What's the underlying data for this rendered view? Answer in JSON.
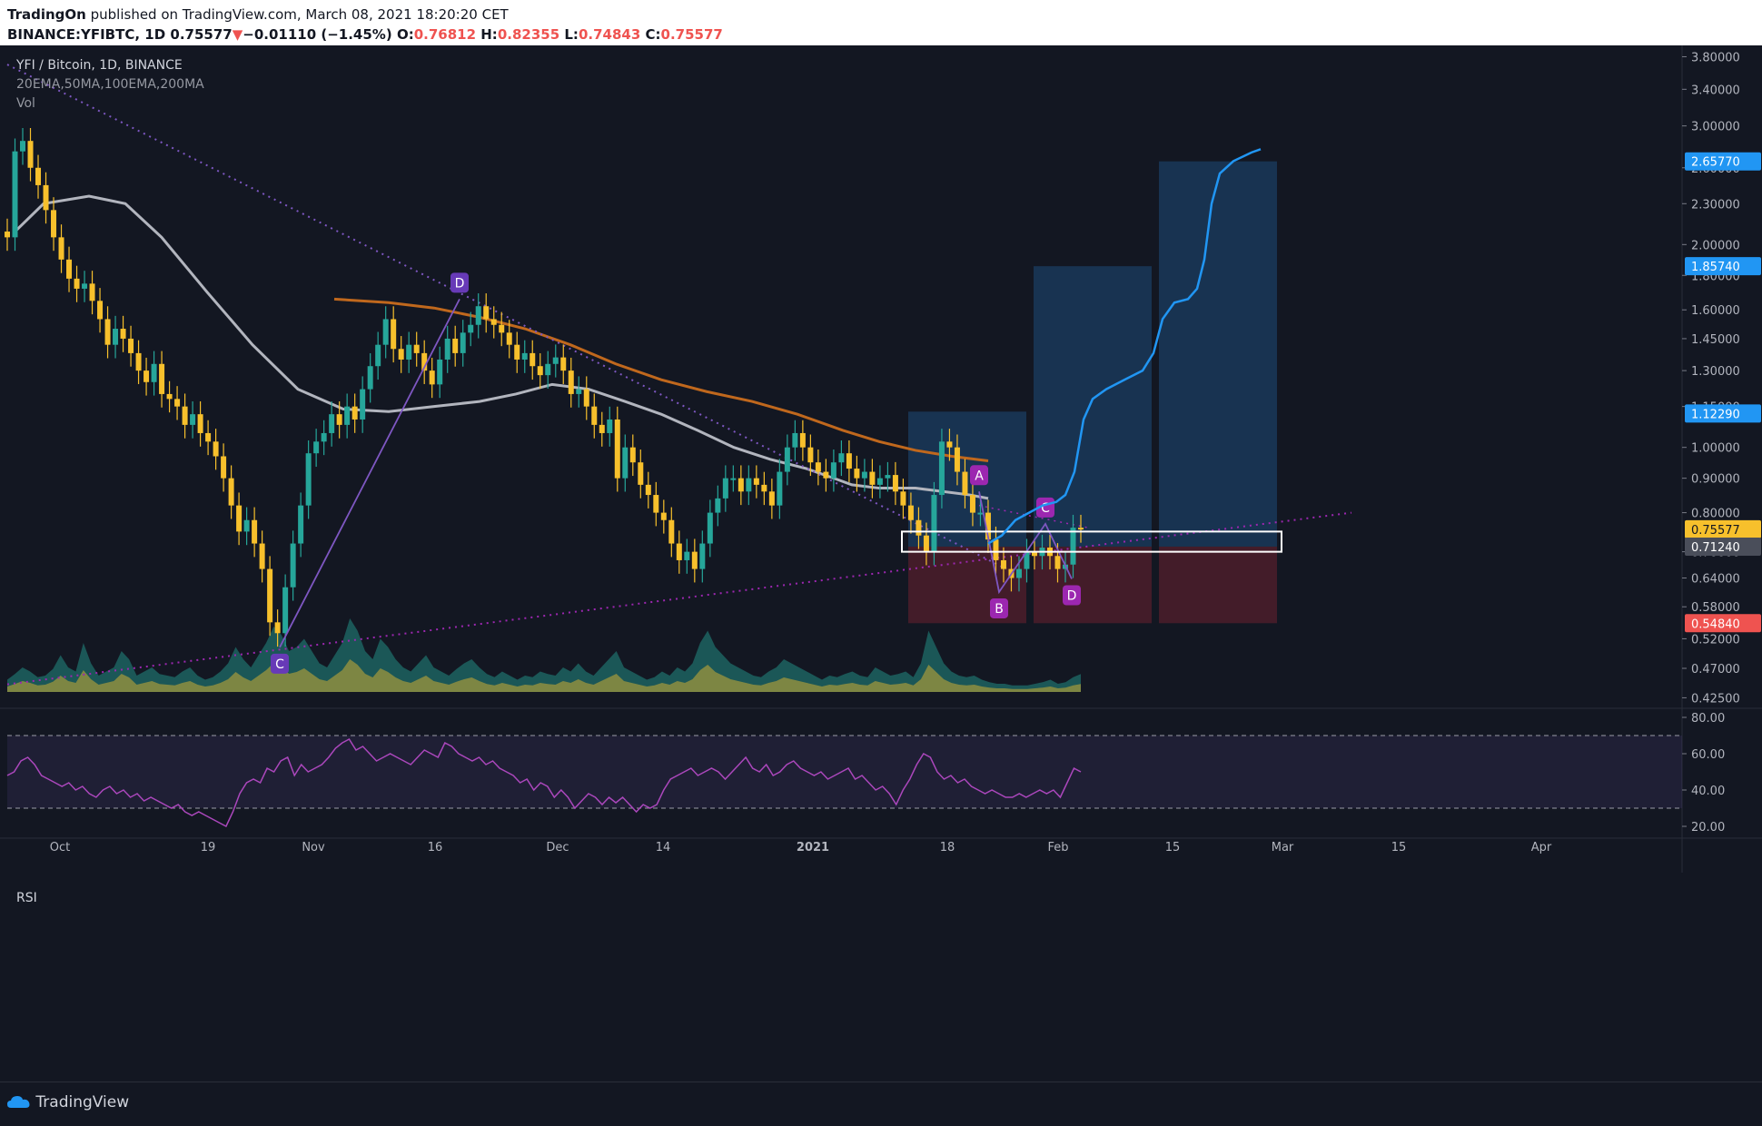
{
  "header": {
    "publisher": "TradingOn",
    "published_text": "published on TradingView.com, March 08, 2021 18:20:20 CET",
    "symbol": "BINANCE:YFIBTC, 1D",
    "last": "0.75577",
    "arrow": "▼",
    "change": "−0.01110 (−1.45%)",
    "o_label": "O:",
    "o": "0.76812",
    "h_label": "H:",
    "h": "0.82355",
    "l_label": "L:",
    "l": "0.74843",
    "c_label": "C:",
    "c": "0.75577"
  },
  "legend": {
    "title": "YFI / Bitcoin, 1D, BINANCE",
    "indicators": "20EMA,50MA,100EMA,200MA",
    "volume": "Vol",
    "rsi": "RSI"
  },
  "footer": {
    "brand": "TradingView"
  },
  "colors": {
    "background": "#131722",
    "up": "#26a69a",
    "down": "#f7c02c",
    "ma50": "#b2b5be",
    "ema100": "#c0681d",
    "pattern": "#7e57c2",
    "trend": "#9c27b0",
    "forecast": "#2196f3",
    "rsi": "#ab47bc"
  },
  "chart_data": [
    {
      "type": "candlestick",
      "title": "YFI / Bitcoin, 1D, BINANCE",
      "scale": "log",
      "ylim": [
        0.41,
        3.95
      ],
      "x_ticks": [
        "Oct",
        "19",
        "Nov",
        "16",
        "Dec",
        "14",
        "2021",
        "18",
        "Feb",
        "15",
        "Mar",
        "15",
        "Apr"
      ],
      "y_ticks": [
        "3.80000",
        "3.40000",
        "3.00000",
        "2.60000",
        "2.30000",
        "2.00000",
        "1.80000",
        "1.60000",
        "1.45000",
        "1.30000",
        "1.15000",
        "1.00000",
        "0.90000",
        "0.80000",
        "0.70000",
        "0.64000",
        "0.58000",
        "0.52000",
        "0.47000",
        "0.42500"
      ],
      "price_labels": [
        {
          "value": "2.65770",
          "price": 2.6577,
          "color": "#2196f3",
          "text_color": "#ffffff"
        },
        {
          "value": "1.85740",
          "price": 1.8574,
          "color": "#2196f3",
          "text_color": "#ffffff"
        },
        {
          "value": "1.12290",
          "price": 1.1229,
          "color": "#2196f3",
          "text_color": "#ffffff"
        },
        {
          "value": "0.75577",
          "price": 0.75577,
          "color": "#f7c02c",
          "text_color": "#131722"
        },
        {
          "value": "0.71240",
          "price": 0.7124,
          "color": "#4a4e5a",
          "text_color": "#ffffff"
        },
        {
          "value": "0.54840",
          "price": 0.5484,
          "color": "#ef5350",
          "text_color": "#ffffff"
        }
      ],
      "closes_early": [
        2.05,
        2.75,
        2.85,
        2.6,
        2.45,
        2.25,
        2.05,
        1.9,
        1.78,
        1.72,
        1.75,
        1.65,
        1.55,
        1.42,
        1.5,
        1.45,
        1.38,
        1.3,
        1.25,
        1.33,
        1.2,
        1.18,
        1.15,
        1.08,
        1.12,
        1.05,
        1.02,
        0.97,
        0.9,
        0.82,
        0.75,
        0.78,
        0.72,
        0.66,
        0.55,
        0.53,
        0.62,
        0.72,
        0.82,
        0.98,
        1.02,
        1.05,
        1.12,
        1.08,
        1.15,
        1.1,
        1.22,
        1.32,
        1.42,
        1.55,
        1.4,
        1.35,
        1.42,
        1.38,
        1.3,
        1.24,
        1.35,
        1.45,
        1.38,
        1.48,
        1.52,
        1.62,
        1.55,
        1.52,
        1.48,
        1.42,
        1.35,
        1.38,
        1.32,
        1.28,
        1.33,
        1.36,
        1.3,
        1.2,
        1.22,
        1.15,
        1.08,
        1.05,
        1.1,
        0.9,
        1.0,
        0.95,
        0.88,
        0.85,
        0.8,
        0.78,
        0.72,
        0.68,
        0.7,
        0.66,
        0.72,
        0.8,
        0.84,
        0.9,
        0.9,
        0.86,
        0.9,
        0.88,
        0.86,
        0.82,
        0.92,
        1.0,
        1.05,
        1.0,
        0.95,
        0.92,
        0.9,
        0.95,
        0.98,
        0.93,
        0.9,
        0.92,
        0.88,
        0.9,
        0.91,
        0.86,
        0.82,
        0.78,
        0.74,
        0.7,
        0.85,
        1.02,
        1.0,
        0.92,
        0.85,
        0.8
      ],
      "closes_late": [
        0.8,
        0.73,
        0.68,
        0.66,
        0.64,
        0.66,
        0.7,
        0.69,
        0.71,
        0.69,
        0.66,
        0.67,
        0.76,
        0.756
      ],
      "volume_scale": [
        0.15,
        0.22,
        0.3,
        0.25,
        0.18,
        0.2,
        0.28,
        0.45,
        0.3,
        0.25,
        0.6,
        0.35,
        0.2,
        0.25,
        0.3,
        0.5,
        0.4,
        0.2,
        0.25,
        0.3,
        0.22,
        0.2,
        0.18,
        0.25,
        0.3,
        0.2,
        0.15,
        0.18,
        0.25,
        0.35,
        0.55,
        0.4,
        0.3,
        0.45,
        0.6,
        0.8,
        0.7,
        0.5,
        0.55,
        0.65,
        0.5,
        0.35,
        0.3,
        0.45,
        0.6,
        0.9,
        0.75,
        0.5,
        0.4,
        0.65,
        0.55,
        0.4,
        0.3,
        0.25,
        0.35,
        0.45,
        0.3,
        0.25,
        0.2,
        0.28,
        0.35,
        0.4,
        0.3,
        0.22,
        0.18,
        0.25,
        0.2,
        0.15,
        0.2,
        0.18,
        0.25,
        0.22,
        0.2,
        0.3,
        0.25,
        0.35,
        0.25,
        0.2,
        0.3,
        0.4,
        0.5,
        0.3,
        0.25,
        0.2,
        0.15,
        0.18,
        0.25,
        0.2,
        0.3,
        0.25,
        0.35,
        0.6,
        0.75,
        0.55,
        0.45,
        0.35,
        0.3,
        0.25,
        0.2,
        0.18,
        0.25,
        0.3,
        0.4,
        0.35,
        0.3,
        0.25,
        0.2,
        0.15,
        0.2,
        0.18,
        0.22,
        0.25,
        0.2,
        0.18,
        0.3,
        0.25,
        0.2,
        0.22,
        0.25,
        0.18,
        0.35,
        0.75,
        0.55,
        0.35,
        0.25,
        0.2,
        0.18,
        0.2,
        0.15,
        0.12,
        0.1,
        0.1,
        0.08,
        0.08,
        0.08,
        0.1,
        0.12,
        0.15,
        0.1,
        0.12,
        0.18,
        0.22
      ],
      "ma50": [
        [
          10,
          2.1
        ],
        [
          40,
          2.3
        ],
        [
          90,
          2.36
        ],
        [
          130,
          2.3
        ],
        [
          170,
          2.05
        ],
        [
          220,
          1.7
        ],
        [
          270,
          1.42
        ],
        [
          320,
          1.22
        ],
        [
          370,
          1.14
        ],
        [
          420,
          1.13
        ],
        [
          470,
          1.15
        ],
        [
          520,
          1.17
        ],
        [
          560,
          1.2
        ],
        [
          600,
          1.24
        ],
        [
          640,
          1.22
        ],
        [
          680,
          1.17
        ],
        [
          720,
          1.12
        ],
        [
          760,
          1.06
        ],
        [
          800,
          1.0
        ],
        [
          840,
          0.96
        ],
        [
          880,
          0.93
        ],
        [
          910,
          0.9
        ],
        [
          930,
          0.88
        ],
        [
          960,
          0.87
        ],
        [
          1000,
          0.87
        ],
        [
          1030,
          0.86
        ],
        [
          1060,
          0.85
        ],
        [
          1080,
          0.84
        ]
      ],
      "ema100": [
        [
          360,
          1.66
        ],
        [
          420,
          1.64
        ],
        [
          470,
          1.61
        ],
        [
          520,
          1.56
        ],
        [
          570,
          1.5
        ],
        [
          620,
          1.42
        ],
        [
          670,
          1.33
        ],
        [
          720,
          1.26
        ],
        [
          770,
          1.21
        ],
        [
          820,
          1.17
        ],
        [
          870,
          1.12
        ],
        [
          920,
          1.06
        ],
        [
          960,
          1.02
        ],
        [
          1000,
          0.99
        ],
        [
          1040,
          0.97
        ],
        [
          1080,
          0.955
        ]
      ],
      "forecast": [
        [
          1080,
          0.72
        ],
        [
          1095,
          0.74
        ],
        [
          1110,
          0.78
        ],
        [
          1125,
          0.8
        ],
        [
          1140,
          0.82
        ],
        [
          1155,
          0.83
        ],
        [
          1165,
          0.85
        ],
        [
          1175,
          0.92
        ],
        [
          1185,
          1.1
        ],
        [
          1195,
          1.18
        ],
        [
          1210,
          1.22
        ],
        [
          1230,
          1.26
        ],
        [
          1250,
          1.3
        ],
        [
          1262,
          1.38
        ],
        [
          1272,
          1.55
        ],
        [
          1285,
          1.64
        ],
        [
          1300,
          1.66
        ],
        [
          1310,
          1.72
        ],
        [
          1318,
          1.9
        ],
        [
          1326,
          2.3
        ],
        [
          1335,
          2.55
        ],
        [
          1350,
          2.66
        ],
        [
          1370,
          2.74
        ],
        [
          1380,
          2.77
        ]
      ],
      "pattern_left": [
        {
          "label": "C",
          "x": 300,
          "price": 0.505
        },
        {
          "label": "D",
          "x": 498,
          "price": 1.66
        }
      ],
      "pattern_right": [
        {
          "label": "A",
          "x": 1070,
          "price": 0.86
        },
        {
          "label": "B",
          "x": 1092,
          "price": 0.61
        },
        {
          "label": "C",
          "x": 1143,
          "price": 0.77
        },
        {
          "label": "D",
          "x": 1172,
          "price": 0.638
        }
      ],
      "zones": [
        {
          "x0": 992,
          "x1": 1122,
          "top": 1.13,
          "entry": 0.7124,
          "stop": 0.5484
        },
        {
          "x0": 1130,
          "x1": 1260,
          "top": 1.8574,
          "entry": 0.7124,
          "stop": 0.5484
        },
        {
          "x0": 1268,
          "x1": 1398,
          "top": 2.6577,
          "entry": 0.7124,
          "stop": 0.5484
        }
      ],
      "box": {
        "x0": 985,
        "x1": 1403,
        "top": 0.75,
        "bottom": 0.7
      }
    },
    {
      "type": "line",
      "title": "RSI",
      "ylim": [
        15,
        85
      ],
      "y_ticks": [
        "80.00",
        "60.00",
        "40.00",
        "20.00"
      ],
      "bands": [
        70,
        30
      ],
      "values": [
        48,
        50,
        56,
        58,
        54,
        48,
        46,
        44,
        42,
        44,
        40,
        42,
        38,
        36,
        40,
        42,
        38,
        40,
        36,
        38,
        34,
        36,
        34,
        32,
        30,
        32,
        28,
        26,
        28,
        26,
        24,
        22,
        20,
        28,
        38,
        44,
        46,
        44,
        52,
        50,
        56,
        58,
        48,
        54,
        50,
        52,
        54,
        58,
        63,
        66,
        68,
        62,
        64,
        60,
        56,
        58,
        60,
        58,
        56,
        54,
        58,
        62,
        60,
        58,
        66,
        64,
        60,
        58,
        56,
        58,
        54,
        56,
        52,
        50,
        48,
        44,
        46,
        40,
        44,
        42,
        36,
        40,
        36,
        30,
        34,
        38,
        36,
        32,
        36,
        33,
        36,
        32,
        28,
        32,
        30,
        32,
        40,
        46,
        48,
        50,
        52,
        48,
        50,
        52,
        50,
        46,
        50,
        54,
        58,
        52,
        50,
        54,
        48,
        50,
        54,
        56,
        52,
        50,
        48,
        50,
        46,
        48,
        50,
        52,
        46,
        48,
        44,
        40,
        42,
        38,
        32,
        40,
        46,
        54,
        60,
        58,
        50,
        46,
        48,
        44,
        46,
        42,
        40,
        38,
        40,
        38,
        36,
        36,
        38,
        36,
        38,
        40,
        38,
        40,
        36,
        44,
        52,
        50
      ]
    }
  ]
}
